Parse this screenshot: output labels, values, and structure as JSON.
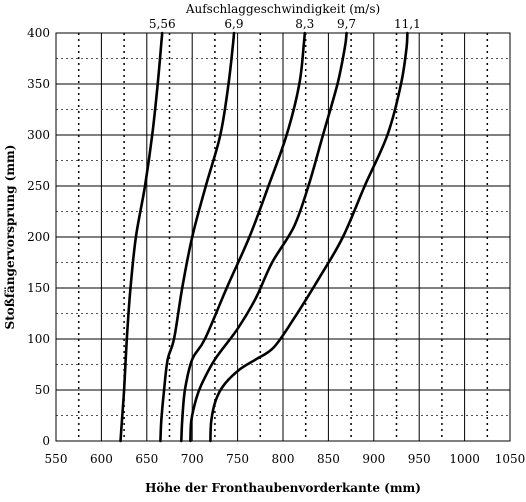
{
  "chart_data": {
    "type": "line",
    "title": "Aufschlaggeschwindigkeit (m/s)",
    "xlabel": "Höhe der Fronthaubenvorderkante (mm)",
    "ylabel": "Stoßfängervorsprung (mm)",
    "xlim": [
      550,
      1050
    ],
    "ylim": [
      0,
      400
    ],
    "x_ticks": [
      550,
      600,
      650,
      700,
      750,
      800,
      850,
      900,
      950,
      1000,
      1050
    ],
    "y_ticks": [
      0,
      50,
      100,
      150,
      200,
      250,
      300,
      350,
      400
    ],
    "grid": true,
    "series": [
      {
        "name": "5,56",
        "points": [
          [
            621,
            0
          ],
          [
            623,
            25
          ],
          [
            625,
            50
          ],
          [
            628,
            100
          ],
          [
            632,
            150
          ],
          [
            638,
            200
          ],
          [
            648,
            250
          ],
          [
            656,
            300
          ],
          [
            662,
            350
          ],
          [
            666,
            390
          ],
          [
            667,
            400
          ]
        ]
      },
      {
        "name": "6,9",
        "points": [
          [
            665,
            0
          ],
          [
            666,
            20
          ],
          [
            669,
            50
          ],
          [
            673,
            80
          ],
          [
            680,
            100
          ],
          [
            689,
            150
          ],
          [
            700,
            200
          ],
          [
            715,
            250
          ],
          [
            731,
            300
          ],
          [
            740,
            350
          ],
          [
            745,
            390
          ],
          [
            746,
            400
          ]
        ]
      },
      {
        "name": "8,3",
        "points": [
          [
            688,
            0
          ],
          [
            689,
            20
          ],
          [
            692,
            50
          ],
          [
            700,
            80
          ],
          [
            714,
            100
          ],
          [
            738,
            150
          ],
          [
            763,
            200
          ],
          [
            784,
            250
          ],
          [
            804,
            300
          ],
          [
            818,
            350
          ],
          [
            823,
            390
          ],
          [
            824,
            400
          ]
        ]
      },
      {
        "name": "9,7",
        "points": [
          [
            698,
            0
          ],
          [
            699,
            20
          ],
          [
            704,
            40
          ],
          [
            710,
            55
          ],
          [
            725,
            80
          ],
          [
            750,
            110
          ],
          [
            770,
            140
          ],
          [
            788,
            175
          ],
          [
            812,
            210
          ],
          [
            828,
            250
          ],
          [
            844,
            300
          ],
          [
            860,
            350
          ],
          [
            868,
            385
          ],
          [
            870,
            400
          ]
        ]
      },
      {
        "name": "11,1",
        "points": [
          [
            720,
            0
          ],
          [
            721,
            20
          ],
          [
            726,
            40
          ],
          [
            735,
            55
          ],
          [
            752,
            70
          ],
          [
            770,
            80
          ],
          [
            790,
            92
          ],
          [
            812,
            120
          ],
          [
            840,
            160
          ],
          [
            866,
            200
          ],
          [
            890,
            250
          ],
          [
            915,
            300
          ],
          [
            930,
            350
          ],
          [
            936,
            385
          ],
          [
            937,
            400
          ]
        ]
      }
    ]
  }
}
